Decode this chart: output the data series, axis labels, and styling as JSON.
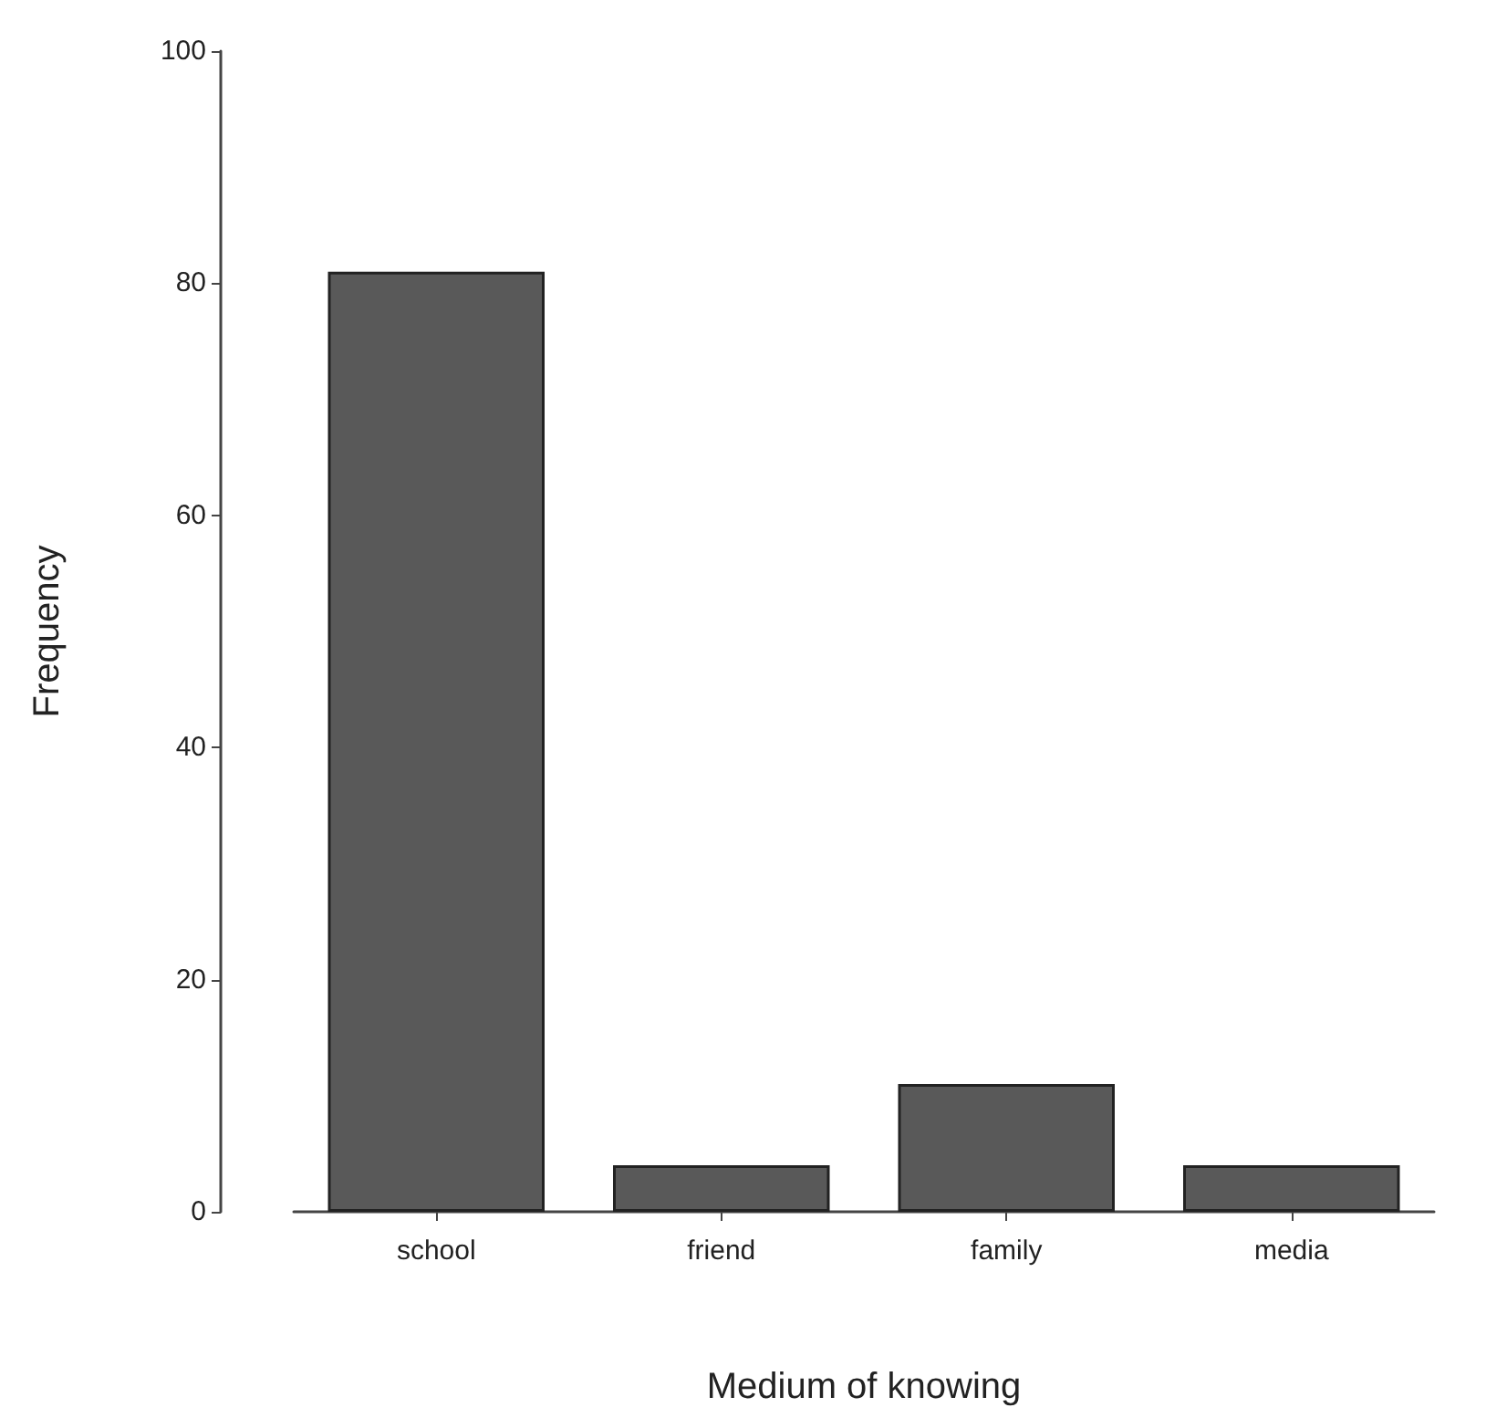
{
  "chart_data": {
    "type": "bar",
    "xlabel": "Medium of knowing",
    "ylabel": "Frequency",
    "categories": [
      "school",
      "friend",
      "family",
      "media"
    ],
    "values": [
      81,
      4,
      11,
      4
    ],
    "color": "#595959",
    "ylim": [
      0,
      100
    ],
    "yticks": [
      0,
      20,
      40,
      60,
      80,
      100
    ],
    "grid": false
  }
}
